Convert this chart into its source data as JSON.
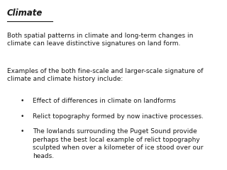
{
  "title": "Climate",
  "para1": "Both spatial patterns in climate and long-term changes in\nclimate can leave distinctive signatures on land form.",
  "para2": "Examples of the both fine-scale and larger-scale signature of\nclimate and climate history include:",
  "bullets": [
    "Effect of differences in climate on landforms",
    "Relict topography formed by now inactive processes.",
    "The lowlands surrounding the Puget Sound provide\nperhaps the best local example of relict topography\nsculpted when over a kilometer of ice stood over our\nheads."
  ],
  "bg_color": "#ffffff",
  "text_color": "#1a1a1a",
  "title_fontsize": 8.5,
  "body_fontsize": 6.5,
  "bullet_char": "•"
}
